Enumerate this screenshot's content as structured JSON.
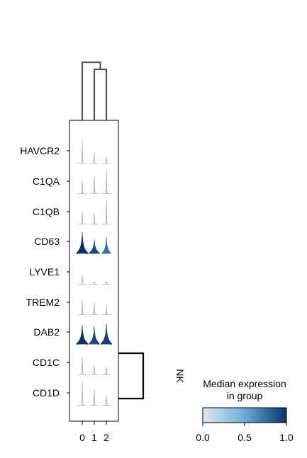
{
  "chart_data": {
    "type": "violin",
    "genes": [
      "HAVCR2",
      "C1QA",
      "C1QB",
      "CD63",
      "LYVE1",
      "TREM2",
      "DAB2",
      "CD1C",
      "CD1D"
    ],
    "groups": [
      "0",
      "1",
      "2"
    ],
    "group_label": "NK",
    "median_expression": [
      [
        0.02,
        0.02,
        0.02
      ],
      [
        0.02,
        0.02,
        0.02
      ],
      [
        0.02,
        0.02,
        0.02
      ],
      [
        1.0,
        0.9,
        0.75
      ],
      [
        0.02,
        0.02,
        0.02
      ],
      [
        0.02,
        0.02,
        0.02
      ],
      [
        1.0,
        0.9,
        0.95
      ],
      [
        0.02,
        0.02,
        0.02
      ],
      [
        0.02,
        0.02,
        0.02
      ]
    ],
    "max_expression": [
      [
        0.9,
        0.4,
        0.25
      ],
      [
        0.5,
        0.7,
        0.95
      ],
      [
        0.45,
        0.4,
        0.95
      ],
      [
        0.85,
        0.55,
        0.65
      ],
      [
        0.35,
        0.05,
        0.05
      ],
      [
        0.55,
        0.45,
        0.3
      ],
      [
        0.75,
        0.7,
        0.8
      ],
      [
        0.7,
        0.35,
        0.3
      ],
      [
        0.9,
        0.6,
        0.35
      ]
    ],
    "colorbar": {
      "title_lines": [
        "Median expression",
        "in group"
      ],
      "ticks": [
        "0.0",
        "0.5",
        "1.0"
      ],
      "range": [
        0,
        1
      ],
      "colors": [
        "#dce9f5",
        "#6aaed6",
        "#08306b"
      ]
    },
    "group_dendrogram": "((1,2),0)",
    "gene_dendrogram": "(CD1C,CD1D)"
  }
}
